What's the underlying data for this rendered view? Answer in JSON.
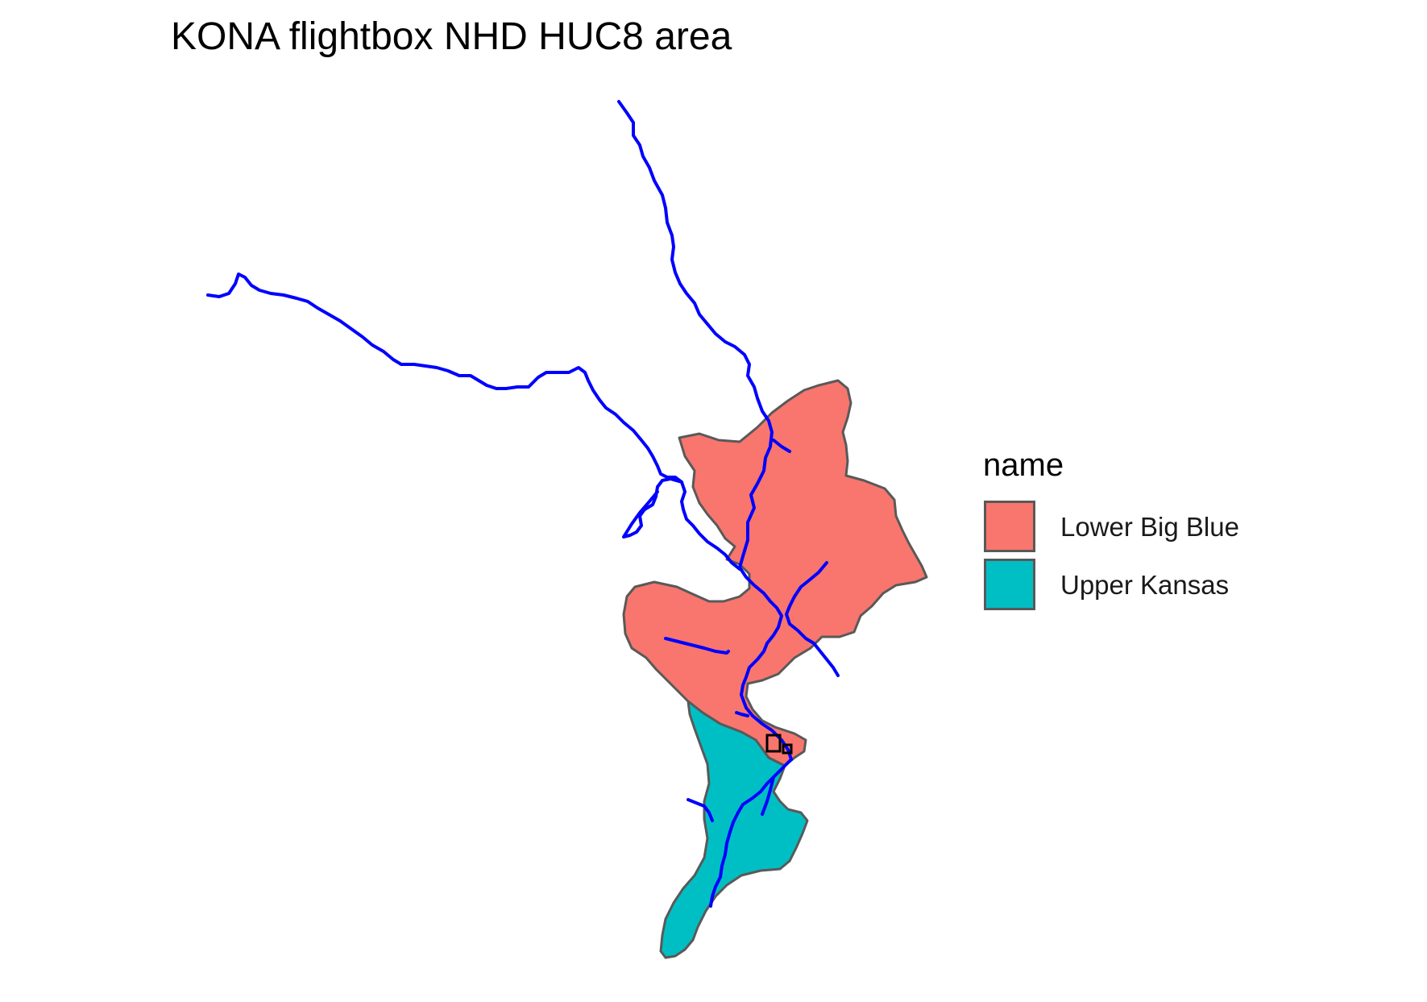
{
  "title": "KONA flightbox NHD HUC8 area",
  "legend": {
    "title": "name",
    "items": [
      {
        "label": "Lower Big Blue",
        "color": "#F8766D"
      },
      {
        "label": "Upper Kansas",
        "color": "#00BFC4"
      }
    ]
  },
  "styles": {
    "boundary_color": "#595959",
    "river_color": "#0000FF",
    "flightbox_color": "#000000"
  }
}
